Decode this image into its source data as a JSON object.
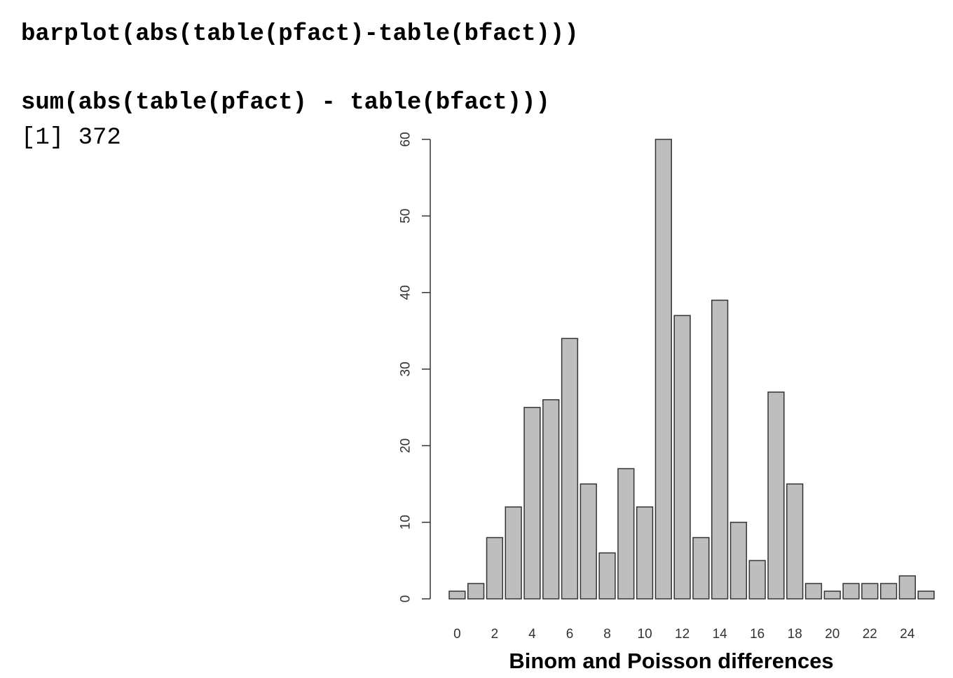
{
  "console": {
    "command1": "barplot(abs(table(pfact)-table(bfact)))",
    "command2": "sum(abs(table(pfact) - table(bfact)))",
    "output1": "[1] 372"
  },
  "chart_data": {
    "type": "bar",
    "categories": [
      "0",
      "1",
      "2",
      "3",
      "4",
      "5",
      "6",
      "7",
      "8",
      "9",
      "10",
      "11",
      "12",
      "13",
      "14",
      "15",
      "16",
      "17",
      "18",
      "19",
      "20",
      "21",
      "22",
      "23",
      "24",
      "25"
    ],
    "values": [
      1,
      2,
      8,
      12,
      25,
      26,
      34,
      15,
      6,
      17,
      12,
      60,
      37,
      8,
      39,
      10,
      5,
      27,
      15,
      2,
      1,
      2,
      2,
      2,
      3,
      1
    ],
    "x_tick_labels": [
      "0",
      "2",
      "4",
      "6",
      "8",
      "10",
      "12",
      "14",
      "16",
      "18",
      "20",
      "22",
      "24"
    ],
    "y_ticks": [
      0,
      10,
      20,
      30,
      40,
      50,
      60
    ],
    "ylim": [
      0,
      60
    ],
    "xlabel": "Binom and Poisson differences",
    "ylabel": "",
    "title": "",
    "grid": false,
    "bar_fill": "#bebebe",
    "bar_stroke": "#333333"
  }
}
